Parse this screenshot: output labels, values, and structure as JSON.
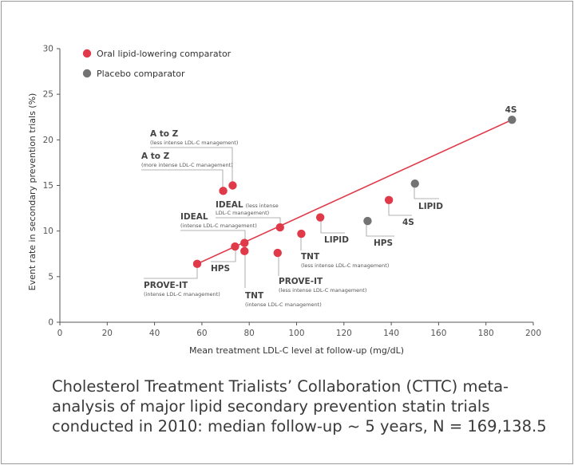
{
  "chart_data": {
    "type": "scatter",
    "title": "",
    "xlabel": "Mean treatment LDL-C level at follow-up (mg/dL)",
    "ylabel": "Event rate in secondary prevention trials (%)",
    "xlim": [
      0,
      200
    ],
    "ylim": [
      0,
      30
    ],
    "xticks": [
      0,
      20,
      40,
      60,
      80,
      100,
      120,
      140,
      160,
      180,
      200
    ],
    "yticks": [
      0,
      5,
      10,
      15,
      20,
      25,
      30
    ],
    "grid": false,
    "legend_position": "top-left",
    "colors": {
      "oral": "#e03a4a",
      "placebo": "#737373",
      "line": "#e03a4a",
      "axis": "#555555"
    },
    "series": [
      {
        "name": "Oral lipid-lowering comparator",
        "color_key": "oral",
        "points": [
          {
            "x": 58,
            "y": 6.4,
            "label": "PROVE-IT",
            "sublabel": "(intense LDL-C management)"
          },
          {
            "x": 74,
            "y": 8.3,
            "label": "HPS",
            "sublabel": ""
          },
          {
            "x": 78,
            "y": 8.7,
            "label": "IDEAL",
            "sublabel": "(intense LDL-C management)"
          },
          {
            "x": 78,
            "y": 7.8,
            "label": "TNT",
            "sublabel": "(intense LDL-C management)"
          },
          {
            "x": 69,
            "y": 14.4,
            "label": "A to Z",
            "sublabel": "(more intense LDL-C management)"
          },
          {
            "x": 73,
            "y": 15.0,
            "label": "A to Z",
            "sublabel": "(less intense LDL-C management)"
          },
          {
            "x": 93,
            "y": 10.4,
            "label": "IDEAL",
            "sublabel": "(less intense",
            "sublabel2": "LDL-C management)"
          },
          {
            "x": 92,
            "y": 7.6,
            "label": "PROVE-IT",
            "sublabel": "(less intense LDL-C management)"
          },
          {
            "x": 102,
            "y": 9.7,
            "label": "TNT",
            "sublabel": "(less intense LDL-C management)"
          },
          {
            "x": 110,
            "y": 11.5,
            "label": "LIPID",
            "sublabel": ""
          },
          {
            "x": 139,
            "y": 13.4,
            "label": "4S",
            "sublabel": ""
          }
        ]
      },
      {
        "name": "Placebo comparator",
        "color_key": "placebo",
        "points": [
          {
            "x": 130,
            "y": 11.1,
            "label": "HPS",
            "sublabel": ""
          },
          {
            "x": 150,
            "y": 15.2,
            "label": "LIPID",
            "sublabel": ""
          },
          {
            "x": 191,
            "y": 22.2,
            "label": "4S",
            "sublabel": ""
          }
        ]
      }
    ],
    "trendline": {
      "x": [
        58,
        191
      ],
      "y": [
        6.4,
        22.2
      ]
    }
  },
  "caption": "Cholesterol Treatment Trialists’ Collaboration (CTTC) meta-analysis of major lipid secondary prevention statin trials conducted in 2010: median follow-up ~ 5 years, N = 169,138.5"
}
